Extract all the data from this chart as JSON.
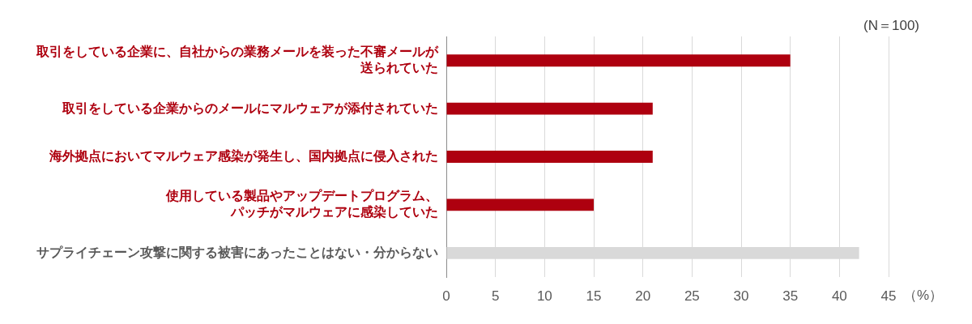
{
  "chart_data": {
    "type": "bar",
    "orientation": "horizontal",
    "categories": [
      "取引をしている企業に、自社からの業務メールを装った不審メールが送られていた",
      "取引をしている企業からのメールにマルウェアが添付されていた",
      "海外拠点においてマルウェア感染が発生し、国内拠点に侵入された",
      "使用している製品やアップデートプログラム、パッチがマルウェアに感染していた",
      "サプライチェーン攻撃に関する被害にあったことはない・分からない"
    ],
    "values": [
      35,
      21,
      21,
      15,
      42
    ],
    "colors": [
      "#ae000f",
      "#ae000f",
      "#ae000f",
      "#ae000f",
      "#d9d9d9"
    ],
    "xlim": [
      0,
      45
    ],
    "xticks": [
      0,
      5,
      10,
      15,
      20,
      25,
      30,
      35,
      40,
      45
    ],
    "xlabel": "（%）",
    "annotations": [
      "(N＝100)"
    ],
    "grid": "x"
  }
}
